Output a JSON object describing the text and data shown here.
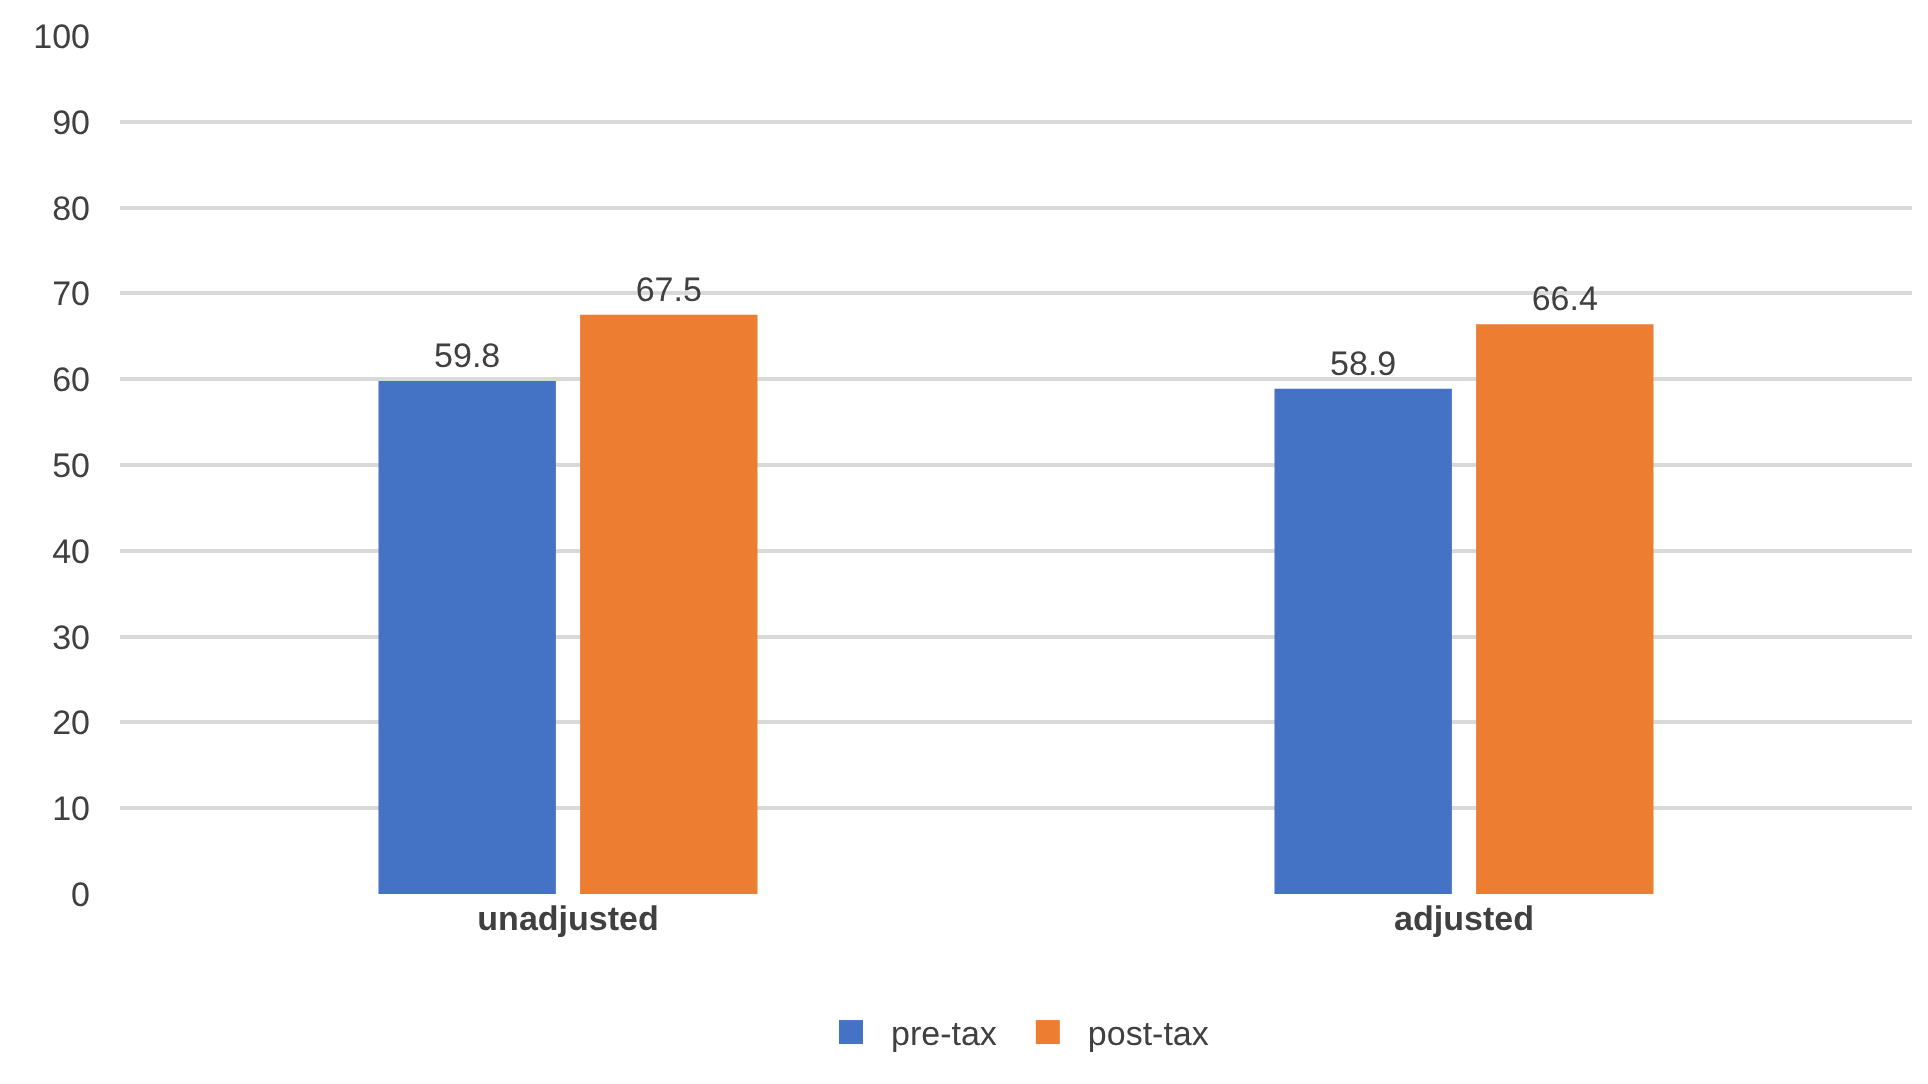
{
  "chart_data": {
    "type": "bar",
    "categories": [
      "unadjusted",
      "adjusted"
    ],
    "series": [
      {
        "name": "pre-tax",
        "color": "#4472c4",
        "values": [
          59.8,
          58.9
        ]
      },
      {
        "name": "post-tax",
        "color": "#ed7d31",
        "values": [
          67.5,
          66.4
        ]
      }
    ],
    "ylim": [
      0,
      100
    ],
    "yticks": [
      0,
      10,
      20,
      30,
      40,
      50,
      60,
      70,
      80,
      90,
      100
    ],
    "grid": "y",
    "data_labels": true,
    "legend": "bottom"
  }
}
